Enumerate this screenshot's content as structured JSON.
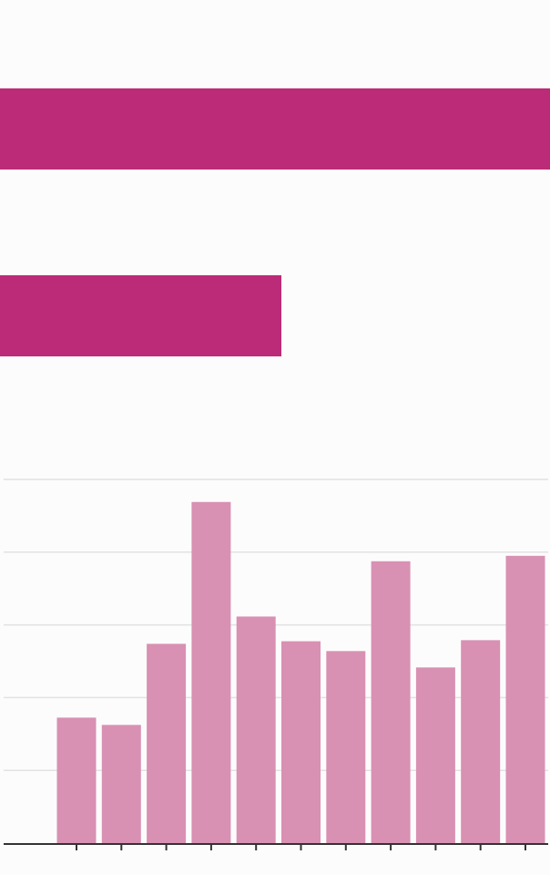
{
  "colors": {
    "background": "#fdfcfd",
    "highlight_bar": "#bb2b77",
    "column_bar": "#d891b2",
    "gridline": "#e2e2e2",
    "axis": "#333333"
  },
  "chart_data": [
    {
      "type": "bar",
      "orientation": "horizontal",
      "categories": [
        "",
        ""
      ],
      "values": [
        100,
        51.2
      ],
      "xlim": [
        0,
        100
      ],
      "grid": false,
      "title": "",
      "xlabel": "",
      "ylabel": ""
    },
    {
      "type": "bar",
      "orientation": "vertical",
      "categories": [
        "",
        "",
        "",
        "",
        "",
        "",
        "",
        "",
        "",
        "",
        ""
      ],
      "values": [
        34.5,
        32.5,
        54.8,
        93.8,
        62.3,
        55.5,
        52.8,
        77.5,
        48.3,
        55.8,
        79
      ],
      "ylim": [
        0,
        100
      ],
      "grid": true,
      "title": "",
      "xlabel": "",
      "ylabel": ""
    }
  ]
}
